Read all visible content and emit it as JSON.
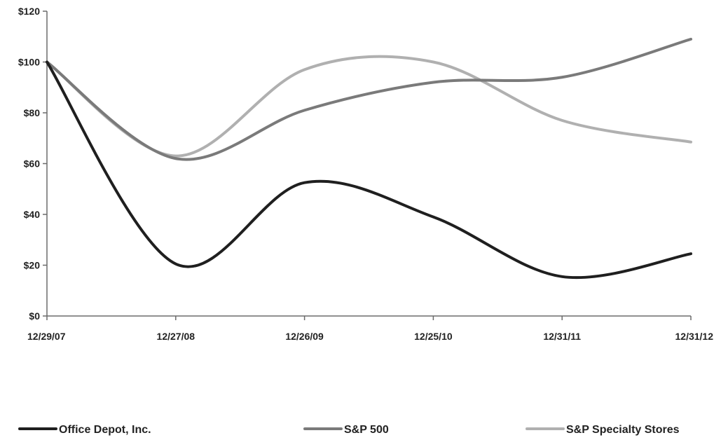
{
  "chart_data": {
    "type": "line",
    "categories": [
      "12/29/07",
      "12/27/08",
      "12/26/09",
      "12/25/10",
      "12/31/11",
      "12/31/12"
    ],
    "ylim": [
      0,
      120
    ],
    "yticks": [
      0,
      20,
      40,
      60,
      80,
      100,
      120
    ],
    "ytick_labels": [
      "$0",
      "$20",
      "$40",
      "$60",
      "$80",
      "$100",
      "$120"
    ],
    "grid": false,
    "legend_position": "bottom",
    "series": [
      {
        "name": "Office Depot, Inc.",
        "values": [
          100,
          20.5,
          52.5,
          39,
          15.5,
          24.5
        ],
        "color": "#1f1f1f"
      },
      {
        "name": "S&P 500",
        "values": [
          100,
          62,
          81,
          92,
          94,
          109
        ],
        "color": "#7a7a7a"
      },
      {
        "name": "S&P Specialty Stores",
        "values": [
          100,
          63,
          97,
          100,
          77,
          68.5
        ],
        "color": "#b0b0b0"
      }
    ]
  }
}
